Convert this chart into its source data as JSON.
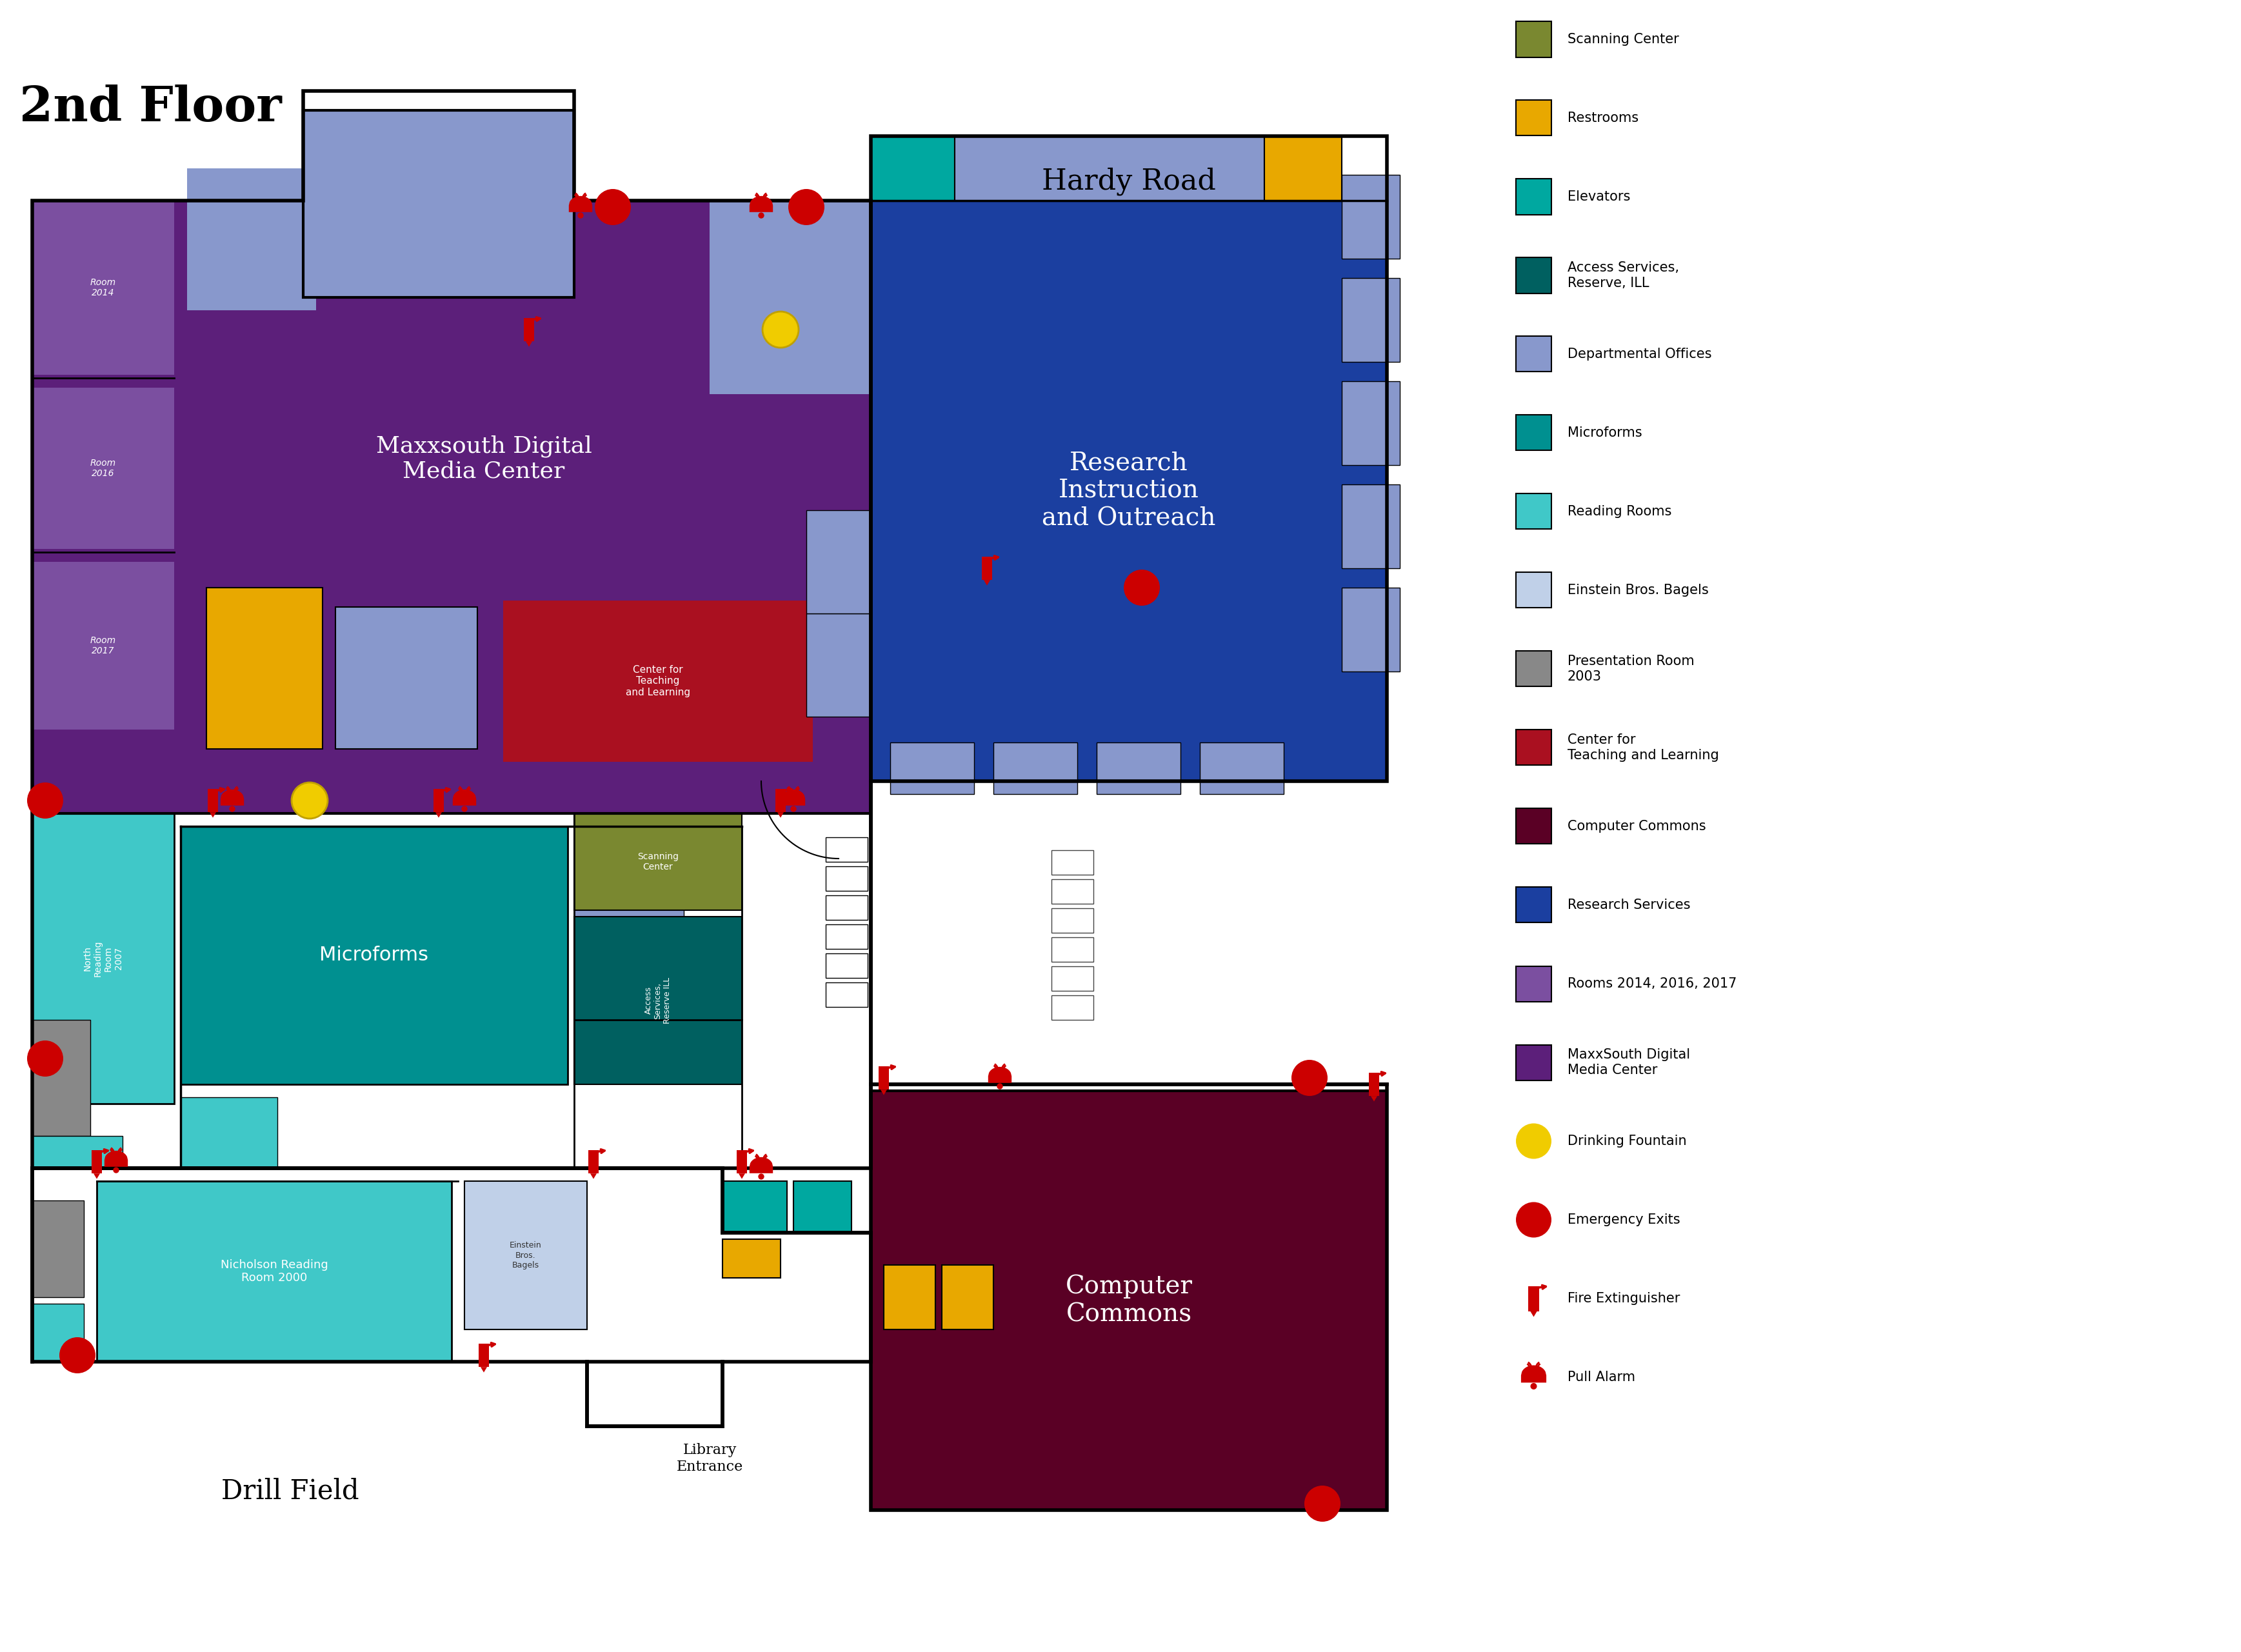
{
  "title": "2nd Floor",
  "road_label": "Hardy Road",
  "drill_field_label": "Drill Field",
  "library_entrance_label": "Library\nEntrance",
  "bg_color": "#ffffff",
  "colors": {
    "maxxsouth": "#5c1f7a",
    "rooms_small": "#7b4fa0",
    "research_services": "#1b3fa0",
    "microforms": "#009090",
    "north_reading": "#40c8c8",
    "nicholson_reading": "#40c8c8",
    "computer_commons": "#5a0025",
    "center_teaching": "#aa1020",
    "scanning_center": "#7a8830",
    "access_services": "#006060",
    "departmental_offices": "#8898cc",
    "einstein_bagels": "#c0d0e8",
    "presentation_room": "#888888",
    "restrooms": "#e8a800",
    "elevators": "#00a8a0",
    "wall": "#000000",
    "red": "#cc0000",
    "yellow": "#f0cc00"
  },
  "legend_items": [
    {
      "label": "Scanning Center",
      "color": "#7a8830",
      "type": "rect"
    },
    {
      "label": "Restrooms",
      "color": "#e8a800",
      "type": "rect"
    },
    {
      "label": "Elevators",
      "color": "#00a8a0",
      "type": "rect"
    },
    {
      "label": "Access Services,\nReserve, ILL",
      "color": "#006060",
      "type": "rect"
    },
    {
      "label": "Departmental Offices",
      "color": "#8898cc",
      "type": "rect"
    },
    {
      "label": "Microforms",
      "color": "#009090",
      "type": "rect"
    },
    {
      "label": "Reading Rooms",
      "color": "#40c8c8",
      "type": "rect"
    },
    {
      "label": "Einstein Bros. Bagels",
      "color": "#c0d0e8",
      "type": "rect"
    },
    {
      "label": "Presentation Room\n2003",
      "color": "#888888",
      "type": "rect"
    },
    {
      "label": "Center for\nTeaching and Learning",
      "color": "#aa1020",
      "type": "rect"
    },
    {
      "label": "Computer Commons",
      "color": "#5a0025",
      "type": "rect"
    },
    {
      "label": "Research Services",
      "color": "#1b3fa0",
      "type": "rect"
    },
    {
      "label": "Rooms 2014, 2016, 2017",
      "color": "#7b4fa0",
      "type": "rect"
    },
    {
      "label": "MaxxSouth Digital\nMedia Center",
      "color": "#5c1f7a",
      "type": "rect"
    },
    {
      "label": "Drinking Fountain",
      "color": "#f0cc00",
      "type": "circle"
    },
    {
      "label": "Emergency Exits",
      "color": "#cc0000",
      "type": "circle"
    },
    {
      "label": "Fire Extinguisher",
      "color": "#cc0000",
      "type": "ext"
    },
    {
      "label": "Pull Alarm",
      "color": "#cc0000",
      "type": "bell"
    }
  ]
}
